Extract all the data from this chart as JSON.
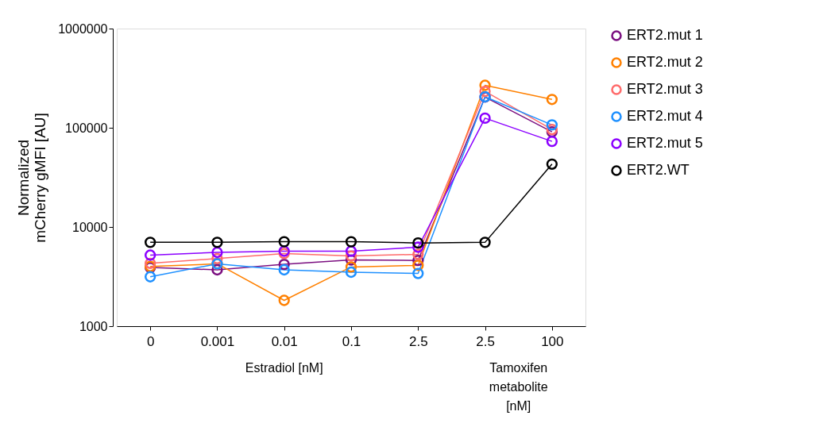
{
  "chart_data": {
    "type": "line",
    "xlabel": "Estradiol [nM]",
    "ylabel": "Normalized mCherry gMFI [AU]",
    "categories": [
      "0",
      "0.001",
      "0.01",
      "0.1",
      "2.5",
      "2.5",
      "100"
    ],
    "series": [
      {
        "name": "ERT2.mut 1",
        "color": "#7b0f80",
        "values": [
          3900,
          3700,
          4200,
          4650,
          4600,
          204000,
          91000
        ]
      },
      {
        "name": "ERT2.mut 2",
        "color": "#ff8000",
        "values": [
          4000,
          4250,
          1820,
          3950,
          4100,
          268000,
          193000
        ]
      },
      {
        "name": "ERT2.mut 3",
        "color": "#ff6b6b",
        "values": [
          4300,
          4800,
          5400,
          5100,
          5300,
          233000,
          96000
        ]
      },
      {
        "name": "ERT2.mut 4",
        "color": "#1e90ff",
        "values": [
          3150,
          4250,
          3700,
          3500,
          3400,
          205000,
          107000
        ]
      },
      {
        "name": "ERT2.mut 5",
        "color": "#8b00ff",
        "values": [
          5200,
          5550,
          5700,
          5700,
          6250,
          125000,
          73000
        ]
      },
      {
        "name": "ERT2.WT",
        "color": "#000000",
        "values": [
          7000,
          7000,
          7100,
          7100,
          6900,
          7000,
          43000
        ]
      }
    ],
    "ylim": [
      1000,
      1000000
    ],
    "yticks": [
      1000,
      10000,
      100000,
      1000000
    ],
    "log": true,
    "annotations": [
      "Tamoxifen metabolite [nM]"
    ],
    "marker": "circle",
    "line_style": "solid",
    "legend": "right",
    "grid": false
  }
}
